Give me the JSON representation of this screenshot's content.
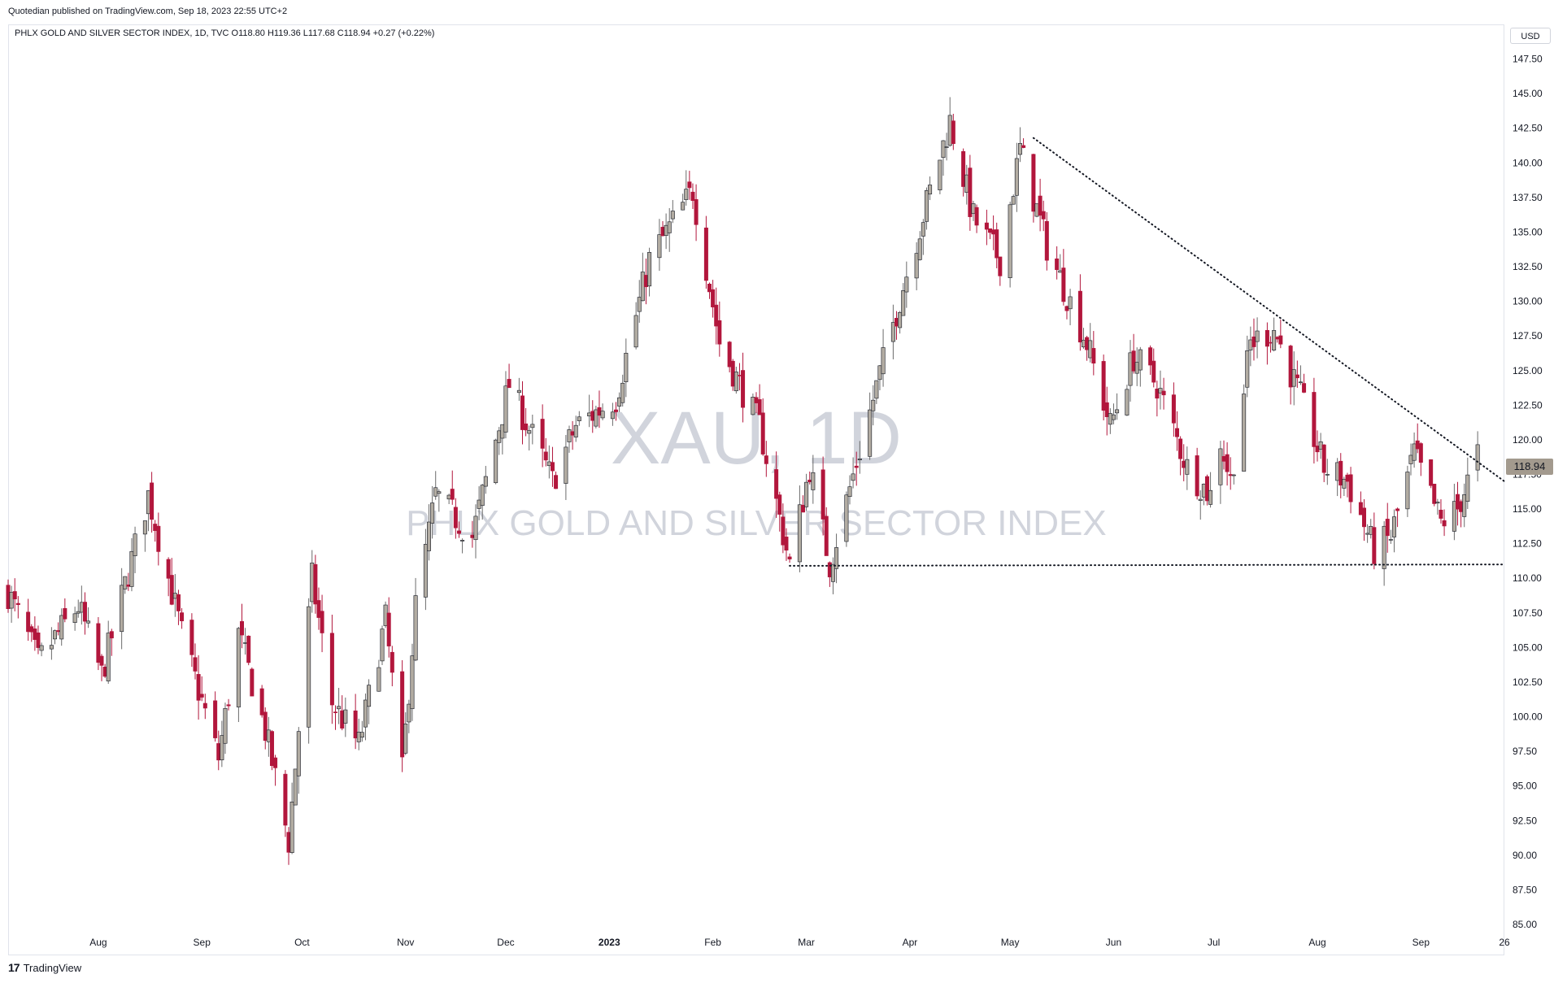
{
  "header": {
    "publisher": "Quotedian published on TradingView.com, Sep 18, 2023 22:55 UTC+2",
    "legend": "PHLX GOLD AND SILVER SECTOR INDEX, 1D, TVC  O118.80  H119.36  L117.68  C118.94  +0.27 (+0.22%)",
    "currency": "USD",
    "last_price_label": "118.94"
  },
  "watermark": {
    "symbol": "XAU, 1D",
    "name": "PHLX GOLD AND SILVER SECTOR INDEX"
  },
  "footer": {
    "brand": "TradingView"
  },
  "colors": {
    "up": "#b2aca2",
    "down": "#b2163c",
    "wick": "#131722",
    "grid": "#ffffff",
    "watermark": "#d1d4dc"
  },
  "chart_data": {
    "type": "candlestick",
    "title": "",
    "y_axis": {
      "min": 85,
      "max": 150,
      "ticks": [
        85.0,
        87.5,
        90.0,
        92.5,
        95.0,
        97.5,
        100.0,
        102.5,
        105.0,
        107.5,
        110.0,
        112.5,
        115.0,
        117.5,
        120.0,
        122.5,
        125.0,
        127.5,
        130.0,
        132.5,
        135.0,
        137.5,
        140.0,
        142.5,
        145.0,
        147.5
      ]
    },
    "x_axis": {
      "start": "2022-07-05",
      "end": "2023-09-26",
      "ticks": [
        {
          "date": "2022-08-01",
          "label": "Aug"
        },
        {
          "date": "2022-09-01",
          "label": "Sep"
        },
        {
          "date": "2022-10-01",
          "label": "Oct"
        },
        {
          "date": "2022-11-01",
          "label": "Nov"
        },
        {
          "date": "2022-12-01",
          "label": "Dec"
        },
        {
          "date": "2023-01-01",
          "label": "2023"
        },
        {
          "date": "2023-02-01",
          "label": "Feb"
        },
        {
          "date": "2023-03-01",
          "label": "Mar"
        },
        {
          "date": "2023-04-01",
          "label": "Apr"
        },
        {
          "date": "2023-05-01",
          "label": "May"
        },
        {
          "date": "2023-06-01",
          "label": "Jun"
        },
        {
          "date": "2023-07-01",
          "label": "Jul"
        },
        {
          "date": "2023-08-01",
          "label": "Aug"
        },
        {
          "date": "2023-09-01",
          "label": "Sep"
        },
        {
          "date": "2023-09-26",
          "label": "26"
        }
      ]
    },
    "anchors": [
      {
        "date": "2022-07-05",
        "close": 109
      },
      {
        "date": "2022-07-14",
        "close": 104
      },
      {
        "date": "2022-07-26",
        "close": 108
      },
      {
        "date": "2022-08-02",
        "close": 103
      },
      {
        "date": "2022-08-16",
        "close": 116
      },
      {
        "date": "2022-08-26",
        "close": 106
      },
      {
        "date": "2022-09-06",
        "close": 97
      },
      {
        "date": "2022-09-12",
        "close": 106
      },
      {
        "date": "2022-09-20",
        "close": 99
      },
      {
        "date": "2022-09-27",
        "close": 91
      },
      {
        "date": "2022-10-04",
        "close": 110
      },
      {
        "date": "2022-10-10",
        "close": 101
      },
      {
        "date": "2022-10-18",
        "close": 98
      },
      {
        "date": "2022-10-26",
        "close": 107
      },
      {
        "date": "2022-10-31",
        "close": 96
      },
      {
        "date": "2022-11-04",
        "close": 108
      },
      {
        "date": "2022-11-10",
        "close": 116
      },
      {
        "date": "2022-11-21",
        "close": 113
      },
      {
        "date": "2022-12-02",
        "close": 124
      },
      {
        "date": "2022-12-15",
        "close": 117
      },
      {
        "date": "2022-12-22",
        "close": 121
      },
      {
        "date": "2023-01-03",
        "close": 123
      },
      {
        "date": "2023-01-13",
        "close": 133
      },
      {
        "date": "2023-01-26",
        "close": 138
      },
      {
        "date": "2023-02-03",
        "close": 127
      },
      {
        "date": "2023-02-15",
        "close": 121
      },
      {
        "date": "2023-02-24",
        "close": 111
      },
      {
        "date": "2023-03-02",
        "close": 118
      },
      {
        "date": "2023-03-08",
        "close": 111
      },
      {
        "date": "2023-03-20",
        "close": 122
      },
      {
        "date": "2023-03-31",
        "close": 132
      },
      {
        "date": "2023-04-13",
        "close": 143
      },
      {
        "date": "2023-04-20",
        "close": 136
      },
      {
        "date": "2023-04-28",
        "close": 133
      },
      {
        "date": "2023-05-04",
        "close": 141
      },
      {
        "date": "2023-05-12",
        "close": 134
      },
      {
        "date": "2023-05-24",
        "close": 127
      },
      {
        "date": "2023-05-31",
        "close": 121
      },
      {
        "date": "2023-06-07",
        "close": 126
      },
      {
        "date": "2023-06-14",
        "close": 124
      },
      {
        "date": "2023-06-23",
        "close": 118
      },
      {
        "date": "2023-06-30",
        "close": 116
      },
      {
        "date": "2023-07-03",
        "close": 120
      },
      {
        "date": "2023-07-06",
        "close": 117
      },
      {
        "date": "2023-07-12",
        "close": 127
      },
      {
        "date": "2023-07-19",
        "close": 128
      },
      {
        "date": "2023-07-27",
        "close": 123
      },
      {
        "date": "2023-08-03",
        "close": 118
      },
      {
        "date": "2023-08-10",
        "close": 117
      },
      {
        "date": "2023-08-18",
        "close": 112
      },
      {
        "date": "2023-08-23",
        "close": 113
      },
      {
        "date": "2023-08-30",
        "close": 119
      },
      {
        "date": "2023-09-07",
        "close": 114
      },
      {
        "date": "2023-09-12",
        "close": 115
      },
      {
        "date": "2023-09-18",
        "close": 118.94
      }
    ],
    "annotations": [
      {
        "type": "dotted-trendline",
        "from": {
          "date": "2023-05-08",
          "value": 141.8
        },
        "to": {
          "date": "2023-09-26",
          "value": 117.0
        }
      },
      {
        "type": "dotted-support",
        "from": {
          "date": "2023-02-24",
          "value": 110.9
        },
        "to": {
          "date": "2023-09-26",
          "value": 111.0
        }
      }
    ]
  }
}
